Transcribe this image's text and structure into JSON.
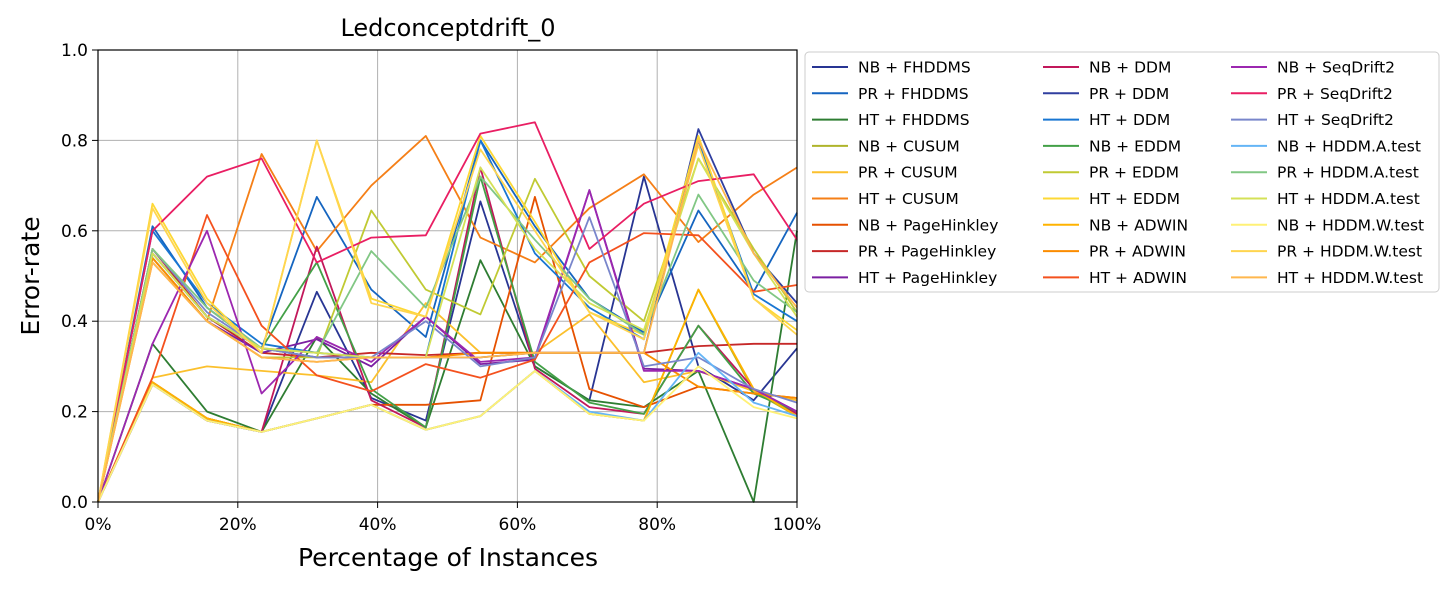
{
  "chart_data": {
    "type": "line",
    "title": "Ledconceptdrift_0",
    "xlabel": "Percentage of Instances",
    "ylabel": "Error-rate",
    "xlim": [
      0,
      100
    ],
    "ylim": [
      0.0,
      1.0
    ],
    "x_tick_labels": [
      "0%",
      "20%",
      "40%",
      "60%",
      "80%",
      "100%"
    ],
    "y_tick_labels": [
      "0.0",
      "0.2",
      "0.4",
      "0.6",
      "0.8",
      "1.0"
    ],
    "grid": true,
    "legend_position": "outside-right",
    "x": [
      0,
      7.8,
      15.6,
      23.4,
      31.3,
      39.1,
      46.9,
      54.7,
      62.5,
      70.3,
      78.1,
      85.9,
      93.8,
      100
    ],
    "series": [
      {
        "name": "NB + FHDDMS",
        "color": "#283593",
        "values": [
          0,
          0.26,
          0.18,
          0.155,
          0.465,
          0.23,
          0.18,
          0.665,
          0.3,
          0.225,
          0.72,
          0.3,
          0.225,
          0.34
        ]
      },
      {
        "name": "PR + FHDDMS",
        "color": "#1565c0",
        "values": [
          0,
          0.61,
          0.43,
          0.34,
          0.675,
          0.47,
          0.365,
          0.8,
          0.61,
          0.45,
          0.375,
          0.645,
          0.465,
          0.64
        ]
      },
      {
        "name": "HT + FHDDMS",
        "color": "#2e7d32",
        "values": [
          0,
          0.35,
          0.2,
          0.155,
          0.365,
          0.24,
          0.165,
          0.535,
          0.3,
          0.225,
          0.21,
          0.29,
          0.0,
          0.6
        ]
      },
      {
        "name": "NB + CUSUM",
        "color": "#afb42b",
        "values": [
          0,
          0.265,
          0.185,
          0.155,
          0.185,
          0.215,
          0.16,
          0.19,
          0.29,
          0.195,
          0.18,
          0.47,
          0.245,
          0.19
        ]
      },
      {
        "name": "PR + CUSUM",
        "color": "#fbc02d",
        "values": [
          0,
          0.275,
          0.3,
          0.29,
          0.28,
          0.265,
          0.44,
          0.33,
          0.33,
          0.415,
          0.265,
          0.29,
          0.245,
          0.225
        ]
      },
      {
        "name": "HT + CUSUM",
        "color": "#f57f17",
        "values": [
          0,
          0.53,
          0.4,
          0.77,
          0.555,
          0.7,
          0.81,
          0.585,
          0.53,
          0.65,
          0.725,
          0.575,
          0.68,
          0.74
        ]
      },
      {
        "name": "NB + PageHinkley",
        "color": "#e65100",
        "values": [
          0,
          0.265,
          0.185,
          0.155,
          0.185,
          0.215,
          0.215,
          0.225,
          0.675,
          0.25,
          0.21,
          0.255,
          0.24,
          0.23
        ]
      },
      {
        "name": "PR + PageHinkley",
        "color": "#c62828",
        "values": [
          0,
          0.56,
          0.41,
          0.33,
          0.32,
          0.33,
          0.325,
          0.33,
          0.33,
          0.33,
          0.33,
          0.345,
          0.35,
          0.35
        ]
      },
      {
        "name": "HT + PageHinkley",
        "color": "#7b1fa2",
        "values": [
          0,
          0.54,
          0.4,
          0.33,
          0.36,
          0.3,
          0.41,
          0.305,
          0.315,
          0.69,
          0.295,
          0.29,
          0.25,
          0.2
        ]
      },
      {
        "name": "NB + DDM",
        "color": "#c2185b",
        "values": [
          0,
          0.26,
          0.18,
          0.155,
          0.565,
          0.225,
          0.165,
          0.74,
          0.295,
          0.21,
          0.195,
          0.39,
          0.25,
          0.195
        ]
      },
      {
        "name": "PR + DDM",
        "color": "#303f9f",
        "values": [
          0,
          0.55,
          0.41,
          0.34,
          0.32,
          0.32,
          0.32,
          0.32,
          0.33,
          0.33,
          0.33,
          0.825,
          0.55,
          0.44
        ]
      },
      {
        "name": "HT + DDM",
        "color": "#1976d2",
        "values": [
          0,
          0.6,
          0.44,
          0.35,
          0.33,
          0.32,
          0.32,
          0.8,
          0.55,
          0.43,
          0.36,
          0.8,
          0.46,
          0.4
        ]
      },
      {
        "name": "NB + EDDM",
        "color": "#43a047",
        "values": [
          0,
          0.55,
          0.41,
          0.34,
          0.53,
          0.25,
          0.165,
          0.72,
          0.31,
          0.22,
          0.195,
          0.39,
          0.24,
          0.2
        ]
      },
      {
        "name": "PR + EDDM",
        "color": "#c0ca33",
        "values": [
          0,
          0.54,
          0.4,
          0.32,
          0.32,
          0.645,
          0.47,
          0.415,
          0.715,
          0.5,
          0.4,
          0.76,
          0.56,
          0.42
        ]
      },
      {
        "name": "HT + EDDM",
        "color": "#fdd835",
        "values": [
          0,
          0.66,
          0.45,
          0.33,
          0.8,
          0.45,
          0.41,
          0.81,
          0.62,
          0.42,
          0.37,
          0.81,
          0.45,
          0.38
        ]
      },
      {
        "name": "NB + ADWIN",
        "color": "#ffb300",
        "values": [
          0,
          0.265,
          0.185,
          0.155,
          0.185,
          0.215,
          0.16,
          0.19,
          0.29,
          0.195,
          0.18,
          0.47,
          0.25,
          0.19
        ]
      },
      {
        "name": "PR + ADWIN",
        "color": "#fb8c00",
        "values": [
          0,
          0.54,
          0.4,
          0.32,
          0.31,
          0.32,
          0.32,
          0.33,
          0.33,
          0.33,
          0.33,
          0.255,
          0.24,
          0.23
        ]
      },
      {
        "name": "HT + ADWIN",
        "color": "#f4511e",
        "values": [
          0,
          0.275,
          0.635,
          0.39,
          0.28,
          0.245,
          0.305,
          0.275,
          0.315,
          0.53,
          0.595,
          0.59,
          0.465,
          0.48
        ]
      },
      {
        "name": "NB + SeqDrift2",
        "color": "#9c27b0",
        "values": [
          0,
          0.35,
          0.6,
          0.24,
          0.365,
          0.31,
          0.41,
          0.31,
          0.32,
          0.69,
          0.29,
          0.29,
          0.25,
          0.2
        ]
      },
      {
        "name": "PR + SeqDrift2",
        "color": "#e91e63",
        "values": [
          0,
          0.6,
          0.72,
          0.76,
          0.53,
          0.585,
          0.59,
          0.815,
          0.84,
          0.56,
          0.66,
          0.71,
          0.725,
          0.58
        ]
      },
      {
        "name": "HT + SeqDrift2",
        "color": "#7986cb",
        "values": [
          0,
          0.56,
          0.42,
          0.34,
          0.32,
          0.32,
          0.4,
          0.3,
          0.32,
          0.63,
          0.3,
          0.32,
          0.25,
          0.22
        ]
      },
      {
        "name": "NB + HDDM.A.test",
        "color": "#64b5f6",
        "values": [
          0,
          0.26,
          0.18,
          0.155,
          0.185,
          0.215,
          0.16,
          0.19,
          0.29,
          0.2,
          0.18,
          0.33,
          0.22,
          0.19
        ]
      },
      {
        "name": "PR + HDDM.A.test",
        "color": "#81c784",
        "values": [
          0,
          0.56,
          0.43,
          0.34,
          0.33,
          0.555,
          0.43,
          0.72,
          0.58,
          0.45,
          0.37,
          0.68,
          0.49,
          0.42
        ]
      },
      {
        "name": "HT + HDDM.A.test",
        "color": "#d4e157",
        "values": [
          0,
          0.55,
          0.41,
          0.34,
          0.33,
          0.32,
          0.32,
          0.74,
          0.56,
          0.44,
          0.38,
          0.76,
          0.55,
          0.41
        ]
      },
      {
        "name": "NB + HDDM.W.test",
        "color": "#fff176",
        "values": [
          0,
          0.26,
          0.18,
          0.155,
          0.185,
          0.215,
          0.16,
          0.19,
          0.29,
          0.195,
          0.18,
          0.3,
          0.21,
          0.185
        ]
      },
      {
        "name": "PR + HDDM.W.test",
        "color": "#ffd54f",
        "values": [
          0,
          0.65,
          0.44,
          0.33,
          0.8,
          0.44,
          0.41,
          0.78,
          0.6,
          0.42,
          0.36,
          0.79,
          0.45,
          0.37
        ]
      },
      {
        "name": "HT + HDDM.W.test",
        "color": "#ffb74d",
        "values": [
          0,
          0.53,
          0.4,
          0.32,
          0.31,
          0.32,
          0.32,
          0.32,
          0.33,
          0.33,
          0.33,
          0.8,
          0.55,
          0.43
        ]
      }
    ]
  }
}
